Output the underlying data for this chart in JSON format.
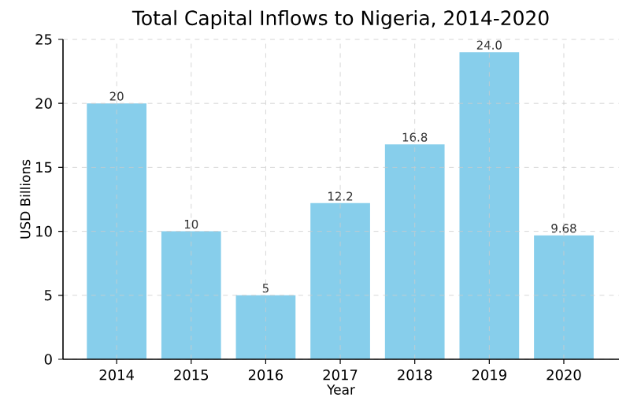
{
  "chart_data": {
    "type": "bar",
    "title": "Total Capital Inflows to Nigeria, 2014-2020",
    "xlabel": "Year",
    "ylabel": "USD Billions",
    "categories": [
      "2014",
      "2015",
      "2016",
      "2017",
      "2018",
      "2019",
      "2020"
    ],
    "values": [
      20,
      10,
      5,
      12.2,
      16.8,
      24.0,
      9.68
    ],
    "value_labels": [
      "20",
      "10",
      "5",
      "12.2",
      "16.8",
      "24.0",
      "9.68"
    ],
    "color": "#87ceeb",
    "ylim": [
      0,
      25
    ],
    "yticks": [
      0,
      5,
      10,
      15,
      20,
      25
    ],
    "grid": true
  }
}
